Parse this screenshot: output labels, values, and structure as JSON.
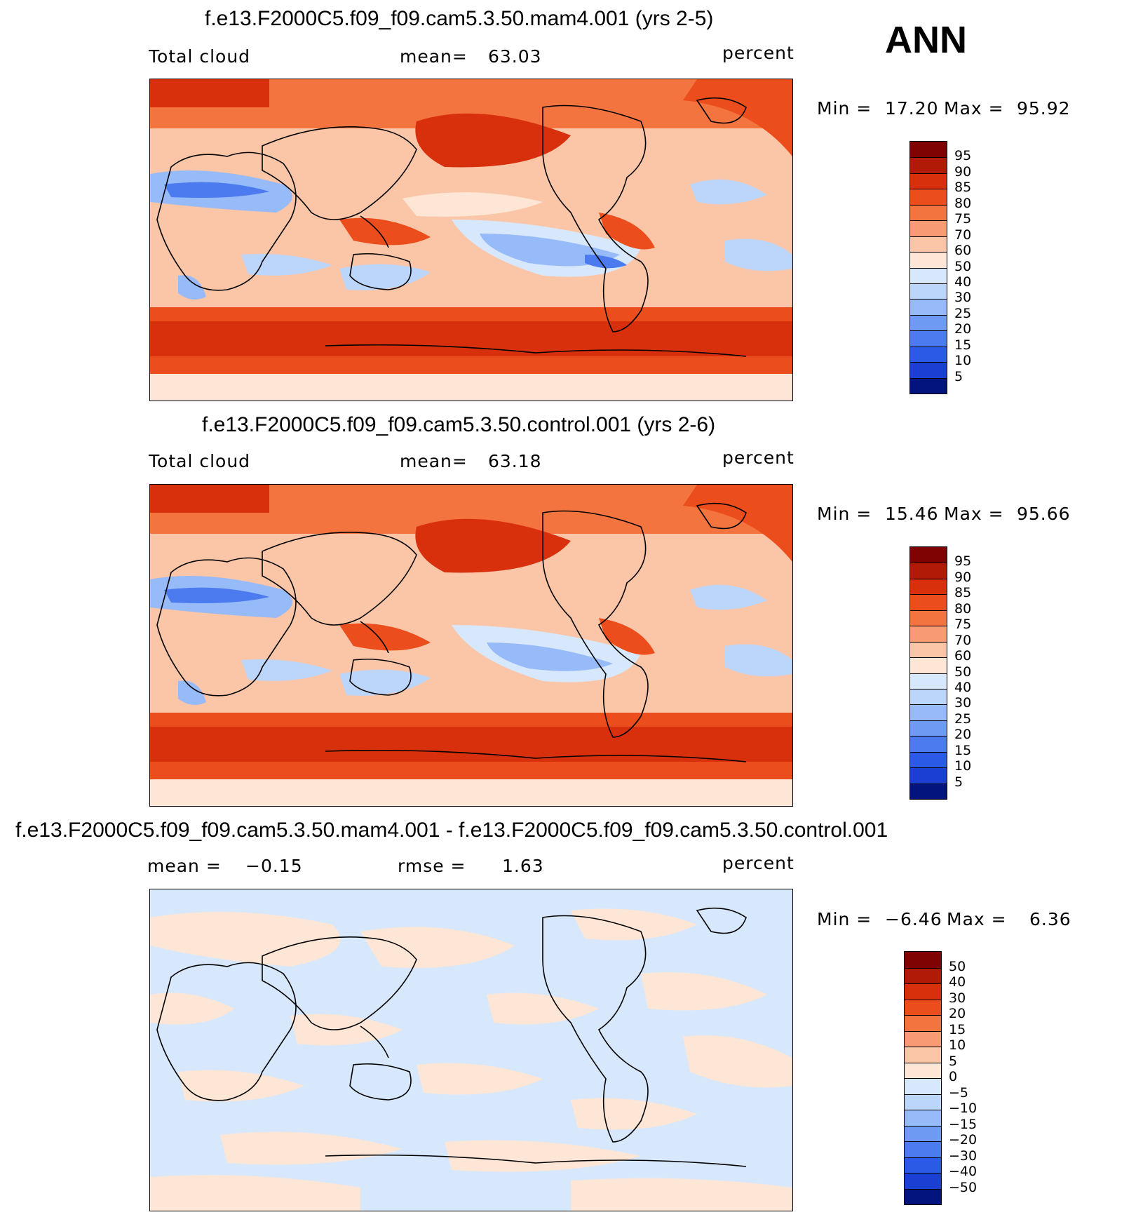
{
  "season": "ANN",
  "colors": {
    "warm": [
      "#fde6d5",
      "#fbc5a7",
      "#f89b74",
      "#f4743f",
      "#ec4d1d",
      "#d8300c",
      "#b01a06",
      "#7f0303"
    ],
    "cool": [
      "#d7e8fd",
      "#bcd6fb",
      "#97baf8",
      "#6f9af4",
      "#4b7bee",
      "#2b5be6",
      "#1b3fd2",
      "#102cae",
      "#04147e"
    ],
    "coast": "#000000"
  },
  "panels": [
    {
      "title": "f.e13.F2000C5.f09_f09.cam5.3.50.mam4.001 (yrs 2-5)",
      "left_label": "Total cloud",
      "mid_label": "mean=",
      "mid_value": "63.03",
      "units": "percent",
      "min_label": "Min =",
      "min_value": "17.20",
      "max_label": "Max =",
      "max_value": "95.92",
      "colorbar_labels": [
        "95",
        "90",
        "85",
        "80",
        "75",
        "70",
        "60",
        "50",
        "40",
        "30",
        "25",
        "20",
        "15",
        "10",
        "5"
      ],
      "colorbar_colors": [
        "#7f0303",
        "#b01a06",
        "#d8300c",
        "#ec4d1d",
        "#f4743f",
        "#f89b74",
        "#fbc5a7",
        "#fde6d5",
        "#d7e8fd",
        "#bcd6fb",
        "#97baf8",
        "#6f9af4",
        "#4b7bee",
        "#2b5be6",
        "#1b3fd2",
        "#04147e"
      ]
    },
    {
      "title": "f.e13.F2000C5.f09_f09.cam5.3.50.control.001 (yrs 2-6)",
      "left_label": "Total cloud",
      "mid_label": "mean=",
      "mid_value": "63.18",
      "units": "percent",
      "min_label": "Min =",
      "min_value": "15.46",
      "max_label": "Max =",
      "max_value": "95.66",
      "colorbar_labels": [
        "95",
        "90",
        "85",
        "80",
        "75",
        "70",
        "60",
        "50",
        "40",
        "30",
        "25",
        "20",
        "15",
        "10",
        "5"
      ],
      "colorbar_colors": [
        "#7f0303",
        "#b01a06",
        "#d8300c",
        "#ec4d1d",
        "#f4743f",
        "#f89b74",
        "#fbc5a7",
        "#fde6d5",
        "#d7e8fd",
        "#bcd6fb",
        "#97baf8",
        "#6f9af4",
        "#4b7bee",
        "#2b5be6",
        "#1b3fd2",
        "#04147e"
      ]
    },
    {
      "title": "f.e13.F2000C5.f09_f09.cam5.3.50.mam4.001 - f.e13.F2000C5.f09_f09.cam5.3.50.control.001",
      "left_label": "mean =",
      "left_value": "−0.15",
      "mid_label": "rmse =",
      "mid_value": "1.63",
      "units": "percent",
      "min_label": "Min =",
      "min_value": "−6.46",
      "max_label": "Max =",
      "max_value": "6.36",
      "colorbar_labels": [
        "50",
        "40",
        "30",
        "20",
        "15",
        "10",
        "5",
        "0",
        "−5",
        "−10",
        "−15",
        "−20",
        "−30",
        "−40",
        "−50"
      ],
      "colorbar_colors": [
        "#7f0303",
        "#b01a06",
        "#d8300c",
        "#ec4d1d",
        "#f4743f",
        "#f89b74",
        "#fbc5a7",
        "#fde6d5",
        "#d7e8fd",
        "#bcd6fb",
        "#97baf8",
        "#6f9af4",
        "#4b7bee",
        "#2b5be6",
        "#1b3fd2",
        "#04147e"
      ]
    }
  ],
  "chart_data": [
    {
      "type": "heatmap",
      "title": "f.e13.F2000C5.f09_f09.cam5.3.50.mam4.001 (yrs 2-5)",
      "variable": "Total cloud",
      "units": "percent",
      "mean": 63.03,
      "min": 17.2,
      "max": 95.92,
      "contour_levels": [
        5,
        10,
        15,
        20,
        25,
        30,
        40,
        50,
        60,
        70,
        75,
        80,
        85,
        90,
        95
      ]
    },
    {
      "type": "heatmap",
      "title": "f.e13.F2000C5.f09_f09.cam5.3.50.control.001 (yrs 2-6)",
      "variable": "Total cloud",
      "units": "percent",
      "mean": 63.18,
      "min": 15.46,
      "max": 95.66,
      "contour_levels": [
        5,
        10,
        15,
        20,
        25,
        30,
        40,
        50,
        60,
        70,
        75,
        80,
        85,
        90,
        95
      ]
    },
    {
      "type": "heatmap",
      "title": "f.e13.F2000C5.f09_f09.cam5.3.50.mam4.001 - f.e13.F2000C5.f09_f09.cam5.3.50.control.001",
      "units": "percent",
      "mean": -0.15,
      "rmse": 1.63,
      "min": -6.46,
      "max": 6.36,
      "contour_levels": [
        -50,
        -40,
        -30,
        -20,
        -15,
        -10,
        -5,
        0,
        5,
        10,
        15,
        20,
        30,
        40,
        50
      ]
    }
  ]
}
